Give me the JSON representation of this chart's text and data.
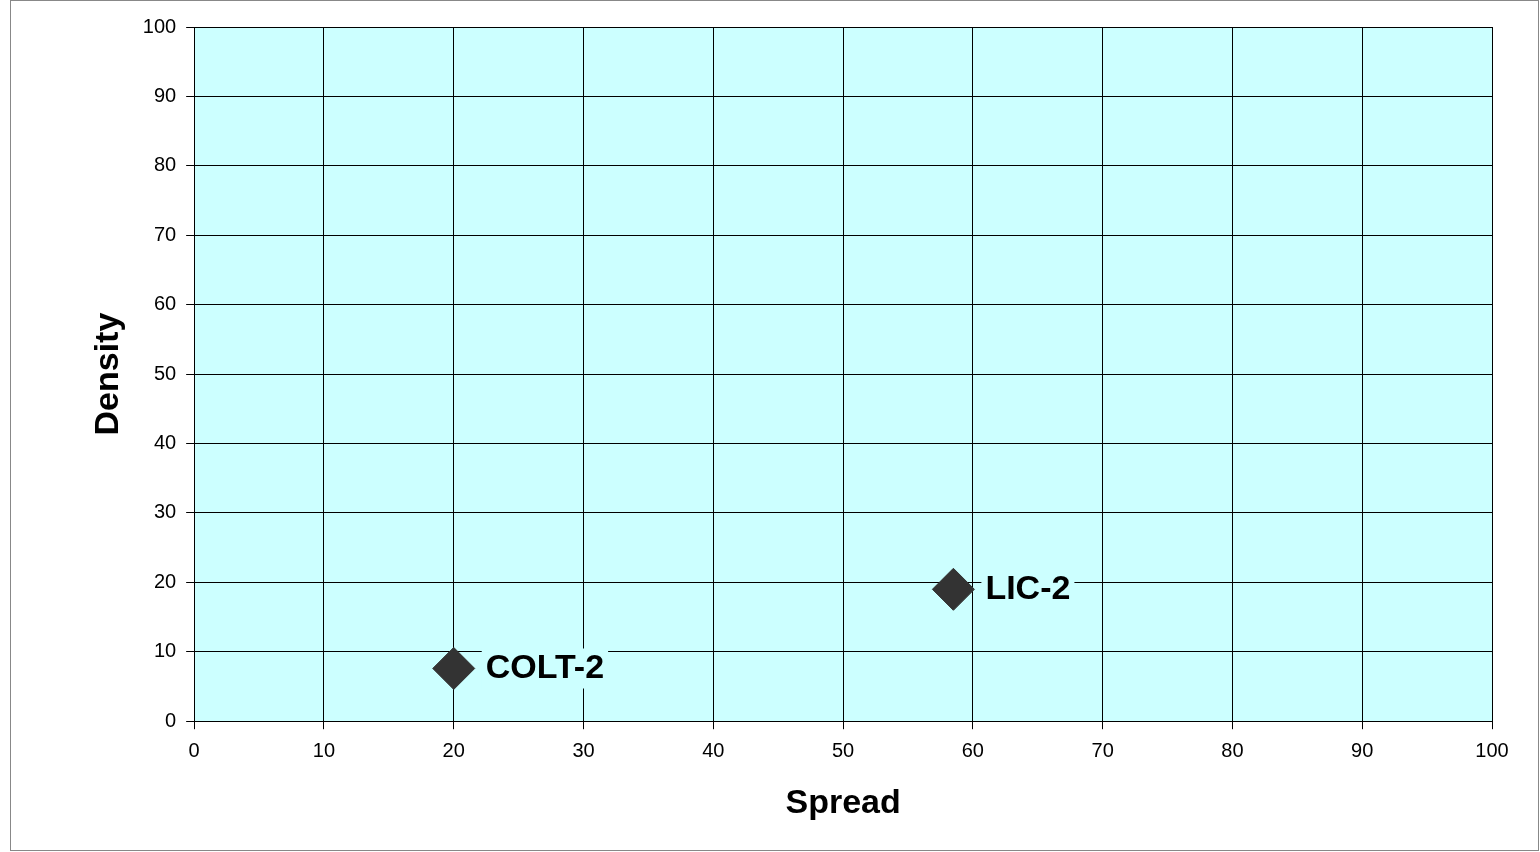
{
  "chart_data": {
    "type": "scatter",
    "xlabel": "Spread",
    "ylabel": "Density",
    "series": [
      {
        "color": "#333333",
        "x": [
          20,
          58.5
        ],
        "values": [
          7.6,
          19
        ]
      }
    ],
    "xlim": [
      0,
      100
    ],
    "xticks": [
      0,
      10,
      20,
      30,
      40,
      50,
      60,
      70,
      80,
      90,
      100
    ],
    "ylim": [
      0,
      100
    ],
    "yticks": [
      0,
      10,
      20,
      30,
      40,
      50,
      60,
      70,
      80,
      90,
      100
    ],
    "annotations": [
      {
        "text": "COLT-2",
        "x": 20,
        "y": 7.6
      },
      {
        "text": "LIC-2",
        "x": 58.5,
        "y": 19
      }
    ],
    "grid": true,
    "legend": false,
    "marker": "diamond"
  }
}
